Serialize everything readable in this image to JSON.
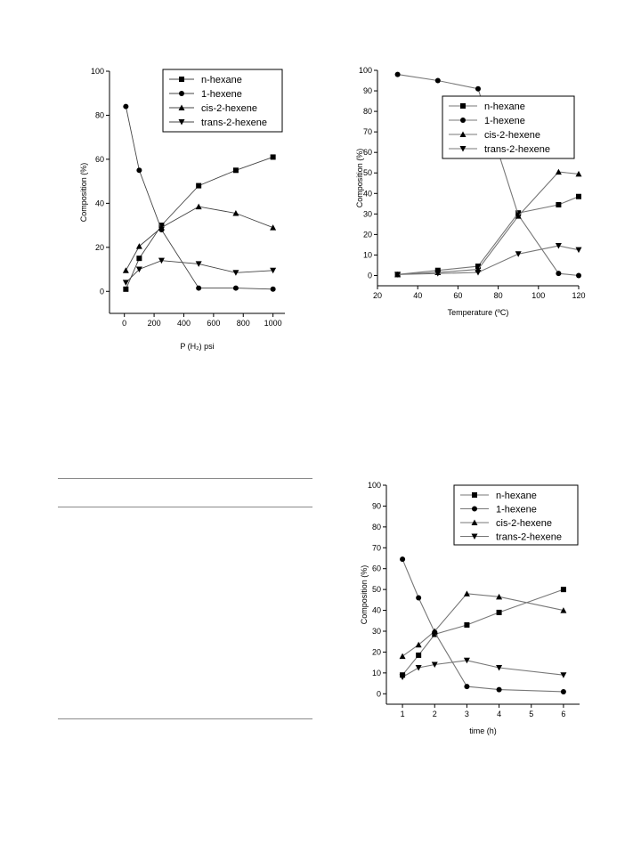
{
  "chart_data": [
    {
      "type": "line",
      "xlabel": "P (H₂) psi",
      "ylabel": "Composition (%)",
      "xlim": [
        -100,
        1080
      ],
      "ylim": [
        -10,
        100
      ],
      "xticks": [
        0,
        200,
        400,
        600,
        800,
        1000
      ],
      "yticks": [
        0,
        20,
        40,
        60,
        80,
        100
      ],
      "grid": false,
      "legend_position": "top-right",
      "series": [
        {
          "name": "n-hexane",
          "marker": "square",
          "x": [
            10,
            100,
            250,
            500,
            750,
            1000
          ],
          "y": [
            1,
            15,
            30,
            48,
            55,
            61
          ]
        },
        {
          "name": "1-hexene",
          "marker": "circle",
          "x": [
            10,
            100,
            250,
            500,
            750,
            1000
          ],
          "y": [
            84,
            55,
            28,
            1.5,
            1.5,
            1
          ]
        },
        {
          "name": "cis-2-hexene",
          "marker": "triangle-up",
          "x": [
            10,
            100,
            250,
            500,
            750,
            1000
          ],
          "y": [
            9.5,
            20.5,
            29,
            38.5,
            35.5,
            29
          ]
        },
        {
          "name": "trans-2-hexene",
          "marker": "triangle-down",
          "x": [
            10,
            100,
            250,
            500,
            750,
            1000
          ],
          "y": [
            4,
            10,
            14,
            12.5,
            8.5,
            9.5
          ]
        }
      ]
    },
    {
      "type": "line",
      "xlabel": "Temperature (ºC)",
      "ylabel": "Composition (%)",
      "xlim": [
        20,
        120
      ],
      "ylim": [
        -5,
        100
      ],
      "xticks": [
        20,
        40,
        60,
        80,
        100,
        120
      ],
      "yticks": [
        0,
        10,
        20,
        30,
        40,
        50,
        60,
        70,
        80,
        90,
        100
      ],
      "grid": false,
      "legend_position": "upper-right",
      "series": [
        {
          "name": "n-hexane",
          "marker": "square",
          "x": [
            30,
            50,
            70,
            90,
            110,
            120
          ],
          "y": [
            0.5,
            2.5,
            4.5,
            30.5,
            34.5,
            38.5
          ]
        },
        {
          "name": "1-hexene",
          "marker": "circle",
          "x": [
            30,
            50,
            70,
            90,
            110,
            120
          ],
          "y": [
            98,
            95,
            91,
            29.5,
            1,
            0
          ]
        },
        {
          "name": "cis-2-hexene",
          "marker": "triangle-up",
          "x": [
            30,
            50,
            70,
            90,
            110,
            120
          ],
          "y": [
            0.5,
            1.5,
            3,
            29,
            50.5,
            49.5
          ]
        },
        {
          "name": "trans-2-hexene",
          "marker": "triangle-down",
          "x": [
            30,
            50,
            70,
            90,
            110,
            120
          ],
          "y": [
            0.5,
            1,
            1.5,
            10.5,
            14.5,
            12.5
          ]
        }
      ]
    },
    {
      "type": "line",
      "xlabel": "time (h)",
      "ylabel": "Composition (%)",
      "xlim": [
        0.5,
        6.5
      ],
      "ylim": [
        -5,
        100
      ],
      "xticks": [
        1,
        2,
        3,
        4,
        5,
        6
      ],
      "yticks": [
        0,
        10,
        20,
        30,
        40,
        50,
        60,
        70,
        80,
        90,
        100
      ],
      "grid": false,
      "legend_position": "top-right",
      "series": [
        {
          "name": "n-hexane",
          "marker": "square",
          "x": [
            1,
            1.5,
            2,
            3,
            4,
            6
          ],
          "y": [
            9,
            18.5,
            28.5,
            33,
            39,
            50
          ]
        },
        {
          "name": "1-hexene",
          "marker": "circle",
          "x": [
            1,
            1.5,
            2,
            3,
            4,
            6
          ],
          "y": [
            64.5,
            46,
            29.5,
            3.5,
            2,
            1
          ]
        },
        {
          "name": "cis-2-hexene",
          "marker": "triangle-up",
          "x": [
            1,
            1.5,
            2,
            3,
            4,
            6
          ],
          "y": [
            18,
            23.5,
            30,
            48,
            46.5,
            40
          ]
        },
        {
          "name": "trans-2-hexene",
          "marker": "triangle-down",
          "x": [
            1,
            1.5,
            2,
            3,
            4,
            6
          ],
          "y": [
            8,
            12.5,
            14,
            16,
            12.5,
            9
          ]
        }
      ]
    }
  ]
}
